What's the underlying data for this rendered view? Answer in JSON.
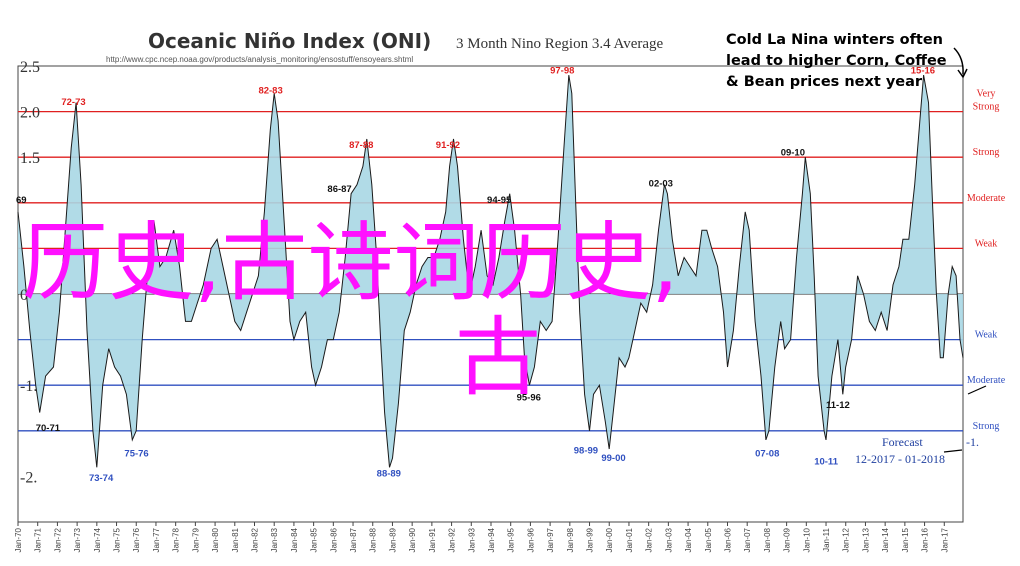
{
  "chart_data": {
    "type": "area",
    "title": "Oceanic Niño Index (ONI)",
    "subtitle": "3 Month Nino Region 3.4 Average",
    "source_url": "http://www.cpc.ncep.noaa.gov/products/analysis_monitoring/ensostuff/ensoyears.shtml",
    "note_lines": [
      "Cold La Nina winters often",
      "lead to higher Corn, Coffee",
      "& Bean prices next year"
    ],
    "ylim": [
      -2.5,
      2.5
    ],
    "y_tick_labels": [
      "2.5",
      "2.0",
      "1.5",
      "",
      "",
      "0",
      "",
      "-1.",
      "",
      "-2."
    ],
    "y_tick_values": [
      2.5,
      2.0,
      1.5,
      1.0,
      0.5,
      0.0,
      -0.5,
      -1.0,
      -1.5,
      -2.0
    ],
    "x_tick_labels": [
      "Jan-70",
      "Jan-71",
      "Jan-72",
      "Jan-73",
      "Jan-74",
      "Jan-75",
      "Jan-76",
      "Jan-77",
      "Jan-78",
      "Jan-79",
      "Jan-80",
      "Jan-81",
      "Jan-82",
      "Jan-83",
      "Jan-84",
      "Jan-85",
      "Jan-86",
      "Jan-87",
      "Jan-88",
      "Jan-89",
      "Jan-90",
      "Jan-91",
      "Jan-92",
      "Jan-93",
      "Jan-94",
      "Jan-95",
      "Jan-96",
      "Jan-97",
      "Jan-98",
      "Jan-99",
      "Jan-00",
      "Jan-01",
      "Jan-02",
      "Jan-03",
      "Jan-04",
      "Jan-05",
      "Jan-06",
      "Jan-07",
      "Jan-08",
      "Jan-09",
      "Jan-10",
      "Jan-11",
      "Jan-12",
      "Jan-13",
      "Jan-14",
      "Jan-15",
      "Jan-16",
      "Jan-17"
    ],
    "x_start_year": 1970,
    "x_end_year": 2017.95,
    "thresholds": [
      {
        "value": 2.0,
        "label": "Very Strong",
        "color": "#e02020"
      },
      {
        "value": 1.5,
        "label": "Strong",
        "color": "#e02020"
      },
      {
        "value": 1.0,
        "label": "Moderate",
        "color": "#e02020"
      },
      {
        "value": 0.5,
        "label": "Weak",
        "color": "#e02020"
      },
      {
        "value": -0.5,
        "label": "Weak",
        "color": "#3050c0"
      },
      {
        "value": -1.0,
        "label": "Moderate",
        "color": "#3050c0"
      },
      {
        "value": -1.5,
        "label": "Strong",
        "color": "#3050c0"
      }
    ],
    "series": [
      {
        "fill": "#a9d7e4",
        "stroke": "#1a1a1a",
        "points": [
          [
            1970.0,
            0.9
          ],
          [
            1970.3,
            0.3
          ],
          [
            1970.6,
            -0.4
          ],
          [
            1970.9,
            -1.0
          ],
          [
            1971.1,
            -1.3
          ],
          [
            1971.4,
            -0.9
          ],
          [
            1971.8,
            -0.8
          ],
          [
            1972.1,
            -0.2
          ],
          [
            1972.4,
            0.7
          ],
          [
            1972.7,
            1.6
          ],
          [
            1972.95,
            2.1
          ],
          [
            1973.2,
            1.2
          ],
          [
            1973.5,
            -0.4
          ],
          [
            1973.8,
            -1.5
          ],
          [
            1974.0,
            -1.9
          ],
          [
            1974.3,
            -1.0
          ],
          [
            1974.6,
            -0.6
          ],
          [
            1974.9,
            -0.8
          ],
          [
            1975.2,
            -0.9
          ],
          [
            1975.5,
            -1.1
          ],
          [
            1975.8,
            -1.6
          ],
          [
            1976.0,
            -1.5
          ],
          [
            1976.3,
            -0.5
          ],
          [
            1976.6,
            0.3
          ],
          [
            1976.9,
            0.8
          ],
          [
            1977.2,
            0.3
          ],
          [
            1977.5,
            0.4
          ],
          [
            1977.9,
            0.7
          ],
          [
            1978.2,
            0.3
          ],
          [
            1978.5,
            -0.3
          ],
          [
            1978.8,
            -0.3
          ],
          [
            1979.1,
            -0.1
          ],
          [
            1979.4,
            0.1
          ],
          [
            1979.8,
            0.5
          ],
          [
            1980.1,
            0.6
          ],
          [
            1980.4,
            0.3
          ],
          [
            1980.7,
            0.0
          ],
          [
            1981.0,
            -0.3
          ],
          [
            1981.3,
            -0.4
          ],
          [
            1981.6,
            -0.2
          ],
          [
            1981.9,
            0.0
          ],
          [
            1982.2,
            0.2
          ],
          [
            1982.5,
            0.9
          ],
          [
            1982.8,
            1.8
          ],
          [
            1983.0,
            2.2
          ],
          [
            1983.2,
            1.9
          ],
          [
            1983.5,
            0.8
          ],
          [
            1983.8,
            -0.3
          ],
          [
            1984.0,
            -0.5
          ],
          [
            1984.3,
            -0.3
          ],
          [
            1984.6,
            -0.2
          ],
          [
            1984.9,
            -0.8
          ],
          [
            1985.1,
            -1.0
          ],
          [
            1985.4,
            -0.8
          ],
          [
            1985.7,
            -0.5
          ],
          [
            1986.0,
            -0.5
          ],
          [
            1986.3,
            -0.2
          ],
          [
            1986.6,
            0.4
          ],
          [
            1986.9,
            1.1
          ],
          [
            1987.2,
            1.2
          ],
          [
            1987.5,
            1.4
          ],
          [
            1987.7,
            1.7
          ],
          [
            1987.95,
            1.2
          ],
          [
            1988.2,
            0.4
          ],
          [
            1988.4,
            -0.5
          ],
          [
            1988.6,
            -1.3
          ],
          [
            1988.85,
            -1.9
          ],
          [
            1989.0,
            -1.8
          ],
          [
            1989.3,
            -1.2
          ],
          [
            1989.6,
            -0.4
          ],
          [
            1989.9,
            -0.2
          ],
          [
            1990.2,
            0.1
          ],
          [
            1990.5,
            0.3
          ],
          [
            1990.8,
            0.4
          ],
          [
            1991.1,
            0.4
          ],
          [
            1991.4,
            0.6
          ],
          [
            1991.7,
            0.9
          ],
          [
            1991.9,
            1.4
          ],
          [
            1992.1,
            1.7
          ],
          [
            1992.3,
            1.4
          ],
          [
            1992.6,
            0.6
          ],
          [
            1992.9,
            0.0
          ],
          [
            1993.2,
            0.3
          ],
          [
            1993.5,
            0.7
          ],
          [
            1993.8,
            0.2
          ],
          [
            1994.1,
            0.1
          ],
          [
            1994.4,
            0.4
          ],
          [
            1994.7,
            0.8
          ],
          [
            1994.95,
            1.1
          ],
          [
            1995.2,
            0.7
          ],
          [
            1995.5,
            0.0
          ],
          [
            1995.7,
            -0.7
          ],
          [
            1995.95,
            -1.0
          ],
          [
            1996.2,
            -0.8
          ],
          [
            1996.5,
            -0.3
          ],
          [
            1996.8,
            -0.4
          ],
          [
            1997.1,
            -0.3
          ],
          [
            1997.4,
            0.6
          ],
          [
            1997.7,
            1.6
          ],
          [
            1997.95,
            2.4
          ],
          [
            1998.1,
            2.2
          ],
          [
            1998.3,
            1.0
          ],
          [
            1998.5,
            -0.2
          ],
          [
            1998.75,
            -1.1
          ],
          [
            1999.0,
            -1.5
          ],
          [
            1999.2,
            -1.1
          ],
          [
            1999.5,
            -1.0
          ],
          [
            1999.8,
            -1.4
          ],
          [
            2000.0,
            -1.7
          ],
          [
            2000.2,
            -1.3
          ],
          [
            2000.5,
            -0.7
          ],
          [
            2000.8,
            -0.8
          ],
          [
            2001.0,
            -0.7
          ],
          [
            2001.3,
            -0.4
          ],
          [
            2001.6,
            -0.1
          ],
          [
            2001.9,
            -0.2
          ],
          [
            2002.2,
            0.1
          ],
          [
            2002.5,
            0.7
          ],
          [
            2002.8,
            1.2
          ],
          [
            2002.95,
            1.1
          ],
          [
            2003.2,
            0.6
          ],
          [
            2003.5,
            0.2
          ],
          [
            2003.8,
            0.4
          ],
          [
            2004.1,
            0.3
          ],
          [
            2004.4,
            0.2
          ],
          [
            2004.7,
            0.7
          ],
          [
            2004.95,
            0.7
          ],
          [
            2005.2,
            0.5
          ],
          [
            2005.5,
            0.3
          ],
          [
            2005.8,
            -0.2
          ],
          [
            2006.0,
            -0.8
          ],
          [
            2006.3,
            -0.4
          ],
          [
            2006.6,
            0.3
          ],
          [
            2006.9,
            0.9
          ],
          [
            2007.1,
            0.7
          ],
          [
            2007.4,
            -0.3
          ],
          [
            2007.7,
            -0.9
          ],
          [
            2007.95,
            -1.6
          ],
          [
            2008.1,
            -1.5
          ],
          [
            2008.4,
            -0.8
          ],
          [
            2008.7,
            -0.3
          ],
          [
            2008.9,
            -0.6
          ],
          [
            2009.2,
            -0.5
          ],
          [
            2009.5,
            0.4
          ],
          [
            2009.8,
            1.1
          ],
          [
            2009.95,
            1.5
          ],
          [
            2010.2,
            1.1
          ],
          [
            2010.4,
            0.2
          ],
          [
            2010.6,
            -0.9
          ],
          [
            2010.9,
            -1.5
          ],
          [
            2011.0,
            -1.6
          ],
          [
            2011.3,
            -0.9
          ],
          [
            2011.6,
            -0.5
          ],
          [
            2011.85,
            -1.1
          ],
          [
            2012.0,
            -0.8
          ],
          [
            2012.3,
            -0.5
          ],
          [
            2012.6,
            0.2
          ],
          [
            2012.9,
            0.0
          ],
          [
            2013.2,
            -0.3
          ],
          [
            2013.5,
            -0.4
          ],
          [
            2013.8,
            -0.2
          ],
          [
            2014.1,
            -0.4
          ],
          [
            2014.4,
            0.1
          ],
          [
            2014.7,
            0.3
          ],
          [
            2014.9,
            0.6
          ],
          [
            2015.2,
            0.6
          ],
          [
            2015.5,
            1.2
          ],
          [
            2015.8,
            2.0
          ],
          [
            2015.95,
            2.4
          ],
          [
            2016.2,
            2.1
          ],
          [
            2016.4,
            1.0
          ],
          [
            2016.6,
            0.0
          ],
          [
            2016.8,
            -0.7
          ],
          [
            2016.95,
            -0.7
          ],
          [
            2017.2,
            0.0
          ],
          [
            2017.4,
            0.3
          ],
          [
            2017.6,
            0.2
          ],
          [
            2017.8,
            -0.5
          ],
          [
            2017.95,
            -0.7
          ]
        ]
      }
    ],
    "event_labels": [
      {
        "text": "72-73",
        "x": 1972.2,
        "y": 2.07,
        "color": "red"
      },
      {
        "text": "82-83",
        "x": 1982.2,
        "y": 2.2,
        "color": "red"
      },
      {
        "text": "87-88",
        "x": 1986.8,
        "y": 1.6,
        "color": "red"
      },
      {
        "text": "91-92",
        "x": 1991.2,
        "y": 1.6,
        "color": "red"
      },
      {
        "text": "97-98",
        "x": 1997.0,
        "y": 2.42,
        "color": "red"
      },
      {
        "text": "15-16",
        "x": 2015.3,
        "y": 2.42,
        "color": "red"
      },
      {
        "text": "86-87",
        "x": 1985.7,
        "y": 1.12,
        "color": "black"
      },
      {
        "text": "02-03",
        "x": 2002.0,
        "y": 1.18,
        "color": "black"
      },
      {
        "text": "09-10",
        "x": 2008.7,
        "y": 1.52,
        "color": "black"
      },
      {
        "text": "69",
        "x": 1969.9,
        "y": 1.0,
        "color": "black"
      },
      {
        "text": "94-95",
        "x": 1993.8,
        "y": 1.0,
        "color": "black"
      },
      {
        "text": "70-71",
        "x": 1970.9,
        "y": -1.5,
        "color": "black"
      },
      {
        "text": "95-96",
        "x": 1995.3,
        "y": -1.17,
        "color": "black"
      },
      {
        "text": "11-12",
        "x": 2011.0,
        "y": -1.25,
        "color": "black"
      },
      {
        "text": "73-74",
        "x": 1973.6,
        "y": -2.05,
        "color": "blue"
      },
      {
        "text": "75-76",
        "x": 1975.4,
        "y": -1.78,
        "color": "blue"
      },
      {
        "text": "88-89",
        "x": 1988.2,
        "y": -2.0,
        "color": "blue"
      },
      {
        "text": "98-99",
        "x": 1998.2,
        "y": -1.75,
        "color": "blue"
      },
      {
        "text": "99-00",
        "x": 1999.6,
        "y": -1.83,
        "color": "blue"
      },
      {
        "text": "07-08",
        "x": 2007.4,
        "y": -1.78,
        "color": "blue"
      },
      {
        "text": "10-11",
        "x": 2010.4,
        "y": -1.87,
        "color": "blue"
      }
    ],
    "forecast": {
      "label": "Forecast",
      "range": "12-2017 - 01-2018",
      "value_label": "-1."
    },
    "grid": false
  },
  "overlay_text": {
    "line1": "历史,古诗词历史,",
    "line2": "古"
  }
}
